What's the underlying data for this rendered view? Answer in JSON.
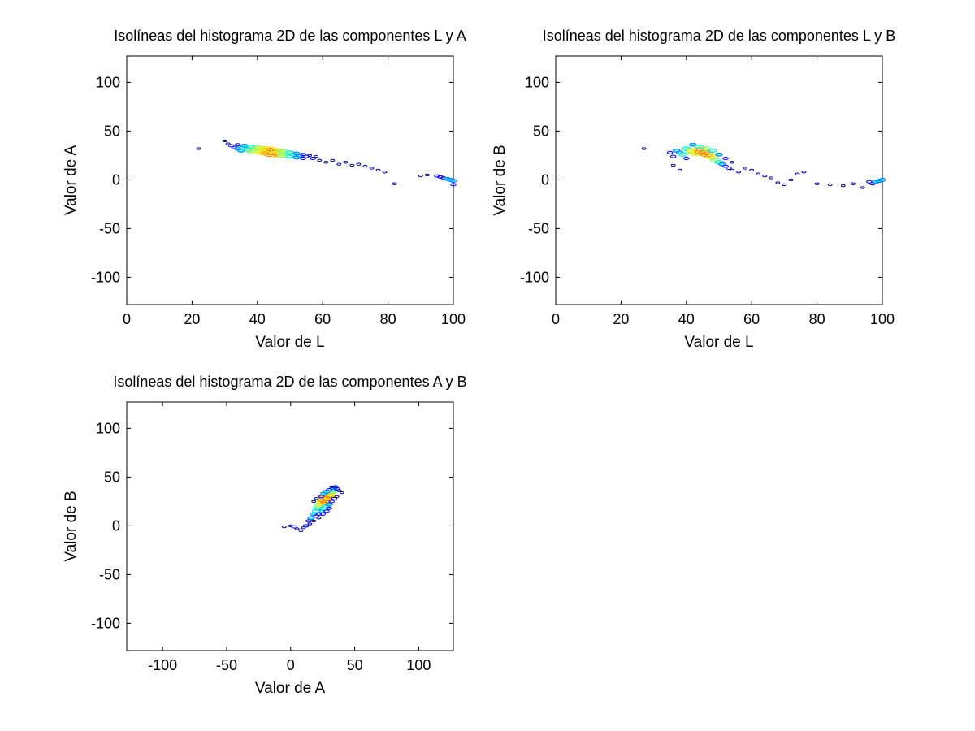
{
  "chart_data": [
    {
      "type": "contour",
      "title": "Isolíneas del histograma 2D de las componentes L y A",
      "xlabel": "Valor de L",
      "ylabel": "Valor de A",
      "xlim": [
        0,
        100
      ],
      "ylim": [
        -128,
        127
      ],
      "xticks": [
        0,
        20,
        40,
        60,
        80,
        100
      ],
      "yticks": [
        100,
        50,
        0,
        -50,
        -100
      ],
      "grid": false,
      "points": [
        [
          30,
          40,
          1
        ],
        [
          31,
          37,
          1
        ],
        [
          32,
          35,
          2
        ],
        [
          33,
          33,
          2
        ],
        [
          34,
          32,
          3
        ],
        [
          35,
          30,
          3
        ],
        [
          36,
          33,
          4
        ],
        [
          37,
          31,
          4
        ],
        [
          38,
          30,
          5
        ],
        [
          39,
          32,
          5
        ],
        [
          40,
          29,
          6
        ],
        [
          41,
          31,
          6
        ],
        [
          42,
          28,
          7
        ],
        [
          43,
          30,
          7
        ],
        [
          44,
          27,
          8
        ],
        [
          45,
          29,
          8
        ],
        [
          46,
          26,
          7
        ],
        [
          47,
          28,
          6
        ],
        [
          48,
          25,
          5
        ],
        [
          49,
          27,
          5
        ],
        [
          50,
          24,
          4
        ],
        [
          51,
          26,
          4
        ],
        [
          52,
          23,
          3
        ],
        [
          53,
          25,
          3
        ],
        [
          54,
          22,
          2
        ],
        [
          55,
          24,
          2
        ],
        [
          57,
          22,
          2
        ],
        [
          59,
          20,
          1
        ],
        [
          61,
          18,
          1
        ],
        [
          63,
          20,
          1
        ],
        [
          65,
          16,
          1
        ],
        [
          67,
          18,
          1
        ],
        [
          69,
          15,
          1
        ],
        [
          71,
          16,
          1
        ],
        [
          73,
          14,
          1
        ],
        [
          75,
          12,
          1
        ],
        [
          77,
          10,
          1
        ],
        [
          79,
          8,
          1
        ],
        [
          82,
          -4,
          1
        ],
        [
          90,
          4,
          1
        ],
        [
          92,
          5,
          1
        ],
        [
          95,
          4,
          2
        ],
        [
          96,
          3,
          2
        ],
        [
          97,
          2,
          2
        ],
        [
          98,
          1,
          3
        ],
        [
          99,
          0,
          3
        ],
        [
          100,
          -1,
          3
        ],
        [
          100,
          -5,
          2
        ],
        [
          22,
          32,
          1
        ],
        [
          34,
          36,
          2
        ],
        [
          36,
          35,
          3
        ],
        [
          38,
          34,
          4
        ],
        [
          40,
          33,
          5
        ],
        [
          42,
          32,
          6
        ],
        [
          44,
          31,
          7
        ],
        [
          46,
          30,
          6
        ],
        [
          48,
          29,
          5
        ],
        [
          50,
          28,
          4
        ],
        [
          52,
          27,
          3
        ],
        [
          54,
          26,
          2
        ],
        [
          56,
          25,
          1
        ],
        [
          58,
          24,
          1
        ]
      ]
    },
    {
      "type": "contour",
      "title": "Isolíneas del histograma 2D de las componentes L y B",
      "xlabel": "Valor de L",
      "ylabel": "Valor de B",
      "xlim": [
        0,
        100
      ],
      "ylim": [
        -128,
        127
      ],
      "xticks": [
        0,
        20,
        40,
        60,
        80,
        100
      ],
      "yticks": [
        100,
        50,
        0,
        -50,
        -100
      ],
      "grid": false,
      "points": [
        [
          27,
          32,
          1
        ],
        [
          35,
          28,
          2
        ],
        [
          36,
          24,
          2
        ],
        [
          37,
          30,
          3
        ],
        [
          38,
          28,
          3
        ],
        [
          39,
          26,
          4
        ],
        [
          40,
          32,
          4
        ],
        [
          41,
          30,
          5
        ],
        [
          42,
          29,
          6
        ],
        [
          43,
          27,
          6
        ],
        [
          44,
          31,
          7
        ],
        [
          45,
          29,
          8
        ],
        [
          46,
          27,
          8
        ],
        [
          47,
          25,
          7
        ],
        [
          48,
          23,
          6
        ],
        [
          49,
          20,
          5
        ],
        [
          50,
          18,
          4
        ],
        [
          51,
          16,
          3
        ],
        [
          52,
          14,
          2
        ],
        [
          53,
          12,
          2
        ],
        [
          54,
          10,
          1
        ],
        [
          56,
          8,
          1
        ],
        [
          58,
          12,
          1
        ],
        [
          60,
          10,
          1
        ],
        [
          62,
          6,
          1
        ],
        [
          64,
          4,
          1
        ],
        [
          66,
          2,
          1
        ],
        [
          68,
          -3,
          1
        ],
        [
          70,
          -5,
          1
        ],
        [
          72,
          0,
          1
        ],
        [
          74,
          6,
          1
        ],
        [
          76,
          8,
          1
        ],
        [
          80,
          -4,
          1
        ],
        [
          84,
          -5,
          1
        ],
        [
          88,
          -6,
          1
        ],
        [
          91,
          -4,
          1
        ],
        [
          94,
          -8,
          1
        ],
        [
          96,
          -2,
          2
        ],
        [
          97,
          -4,
          2
        ],
        [
          98,
          -2,
          3
        ],
        [
          99,
          -1,
          3
        ],
        [
          100,
          0,
          3
        ],
        [
          36,
          15,
          1
        ],
        [
          38,
          10,
          1
        ],
        [
          40,
          22,
          2
        ],
        [
          42,
          36,
          3
        ],
        [
          44,
          34,
          4
        ],
        [
          46,
          32,
          5
        ],
        [
          48,
          30,
          4
        ],
        [
          50,
          26,
          3
        ],
        [
          52,
          22,
          2
        ],
        [
          54,
          18,
          1
        ]
      ]
    },
    {
      "type": "contour",
      "title": "Isolíneas del histograma 2D de las componentes A y B",
      "xlabel": "Valor de A",
      "ylabel": "Valor de B",
      "xlim": [
        -128,
        127
      ],
      "ylim": [
        -128,
        127
      ],
      "xticks": [
        -100,
        -50,
        0,
        50,
        100
      ],
      "yticks": [
        100,
        50,
        0,
        -50,
        -100
      ],
      "grid": false,
      "points": [
        [
          -5,
          -1,
          1
        ],
        [
          0,
          0,
          1
        ],
        [
          3,
          -1,
          2
        ],
        [
          5,
          -3,
          1
        ],
        [
          8,
          -5,
          1
        ],
        [
          10,
          -2,
          1
        ],
        [
          12,
          0,
          2
        ],
        [
          14,
          5,
          2
        ],
        [
          16,
          8,
          3
        ],
        [
          18,
          12,
          3
        ],
        [
          20,
          15,
          4
        ],
        [
          21,
          18,
          4
        ],
        [
          22,
          20,
          5
        ],
        [
          24,
          22,
          6
        ],
        [
          25,
          25,
          6
        ],
        [
          26,
          24,
          7
        ],
        [
          27,
          27,
          8
        ],
        [
          28,
          29,
          8
        ],
        [
          29,
          31,
          7
        ],
        [
          30,
          30,
          7
        ],
        [
          31,
          33,
          6
        ],
        [
          32,
          35,
          5
        ],
        [
          33,
          37,
          4
        ],
        [
          34,
          39,
          3
        ],
        [
          35,
          40,
          2
        ],
        [
          36,
          38,
          2
        ],
        [
          38,
          36,
          1
        ],
        [
          40,
          34,
          1
        ],
        [
          20,
          10,
          2
        ],
        [
          22,
          12,
          2
        ],
        [
          24,
          15,
          3
        ],
        [
          26,
          18,
          4
        ],
        [
          28,
          20,
          4
        ],
        [
          30,
          22,
          3
        ],
        [
          32,
          25,
          2
        ],
        [
          34,
          28,
          2
        ],
        [
          36,
          30,
          1
        ],
        [
          15,
          2,
          1
        ],
        [
          18,
          5,
          1
        ],
        [
          22,
          8,
          1
        ],
        [
          25,
          12,
          2
        ],
        [
          28,
          15,
          2
        ],
        [
          30,
          18,
          2
        ],
        [
          18,
          25,
          1
        ],
        [
          20,
          28,
          1
        ],
        [
          24,
          30,
          2
        ],
        [
          26,
          33,
          3
        ],
        [
          28,
          35,
          3
        ],
        [
          30,
          37,
          2
        ],
        [
          32,
          40,
          1
        ]
      ]
    }
  ]
}
